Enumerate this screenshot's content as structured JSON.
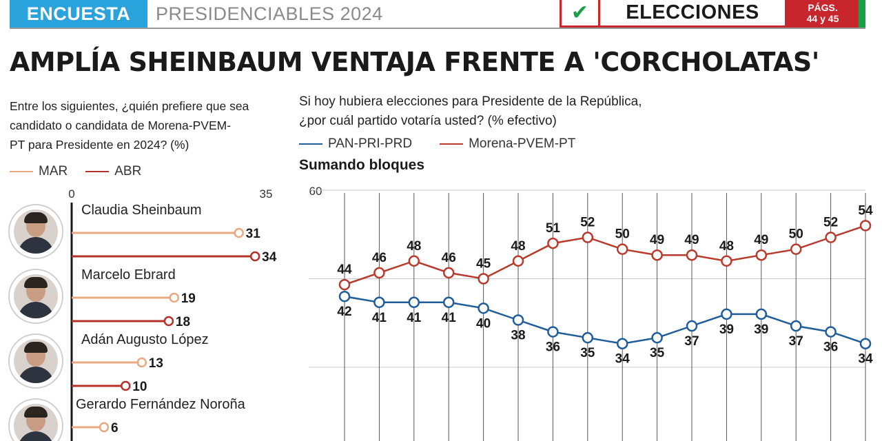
{
  "header": {
    "tag": "ENCUESTA",
    "section": "PRESIDENCIABLES 2024",
    "elections": "ELECCIONES",
    "pages_line1": "PÁGS.",
    "pages_line2": "44 y 45",
    "check_icon": "check-icon",
    "colors": {
      "tag_bg": "#2aa2dc",
      "red": "#c8262d",
      "green": "#1a9e4a"
    }
  },
  "headline": "AMPLÍA SHEINBAUM VENTAJA FRENTE A 'CORCHOLATAS'",
  "chart_data": [
    {
      "type": "bar",
      "title": "Entre los siguientes, ¿quién prefiere que sea candidato o candidata de Morena-PVEM-PT para Presidente en 2024? (%)",
      "title_lines": [
        "Entre los siguientes, ¿quién prefiere que sea",
        "candidato o candidata de Morena-PVEM-",
        "PT para Presidente en 2024?  (%)"
      ],
      "xlim": [
        0,
        35
      ],
      "tick_labels": [
        "0",
        "35"
      ],
      "categories": [
        "Claudia Sheinbaum",
        "Marcelo Ebrard",
        "Adán Augusto López",
        "Gerardo Fernández Noroña"
      ],
      "series": [
        {
          "name": "MAR",
          "color": "#e8a882",
          "values": [
            31,
            19,
            13,
            6
          ]
        },
        {
          "name": "ABR",
          "color": "#b3312a",
          "values": [
            34,
            18,
            10,
            null
          ]
        }
      ],
      "legend": "top-left"
    },
    {
      "type": "line",
      "title": "Si hoy hubiera elecciones para Presidente de la República, ¿por cuál partido votaría usted? (% efectivo)",
      "title_lines": [
        "Si hoy hubiera elecciones para Presidente de la República,",
        "¿por cuál partido votaría usted? (% efectivo)"
      ],
      "subtitle": "Sumando bloques",
      "ylim": [
        0,
        60
      ],
      "y_tick_labels": [
        "60"
      ],
      "x_count": 16,
      "series": [
        {
          "name": "PAN-PRI-PRD",
          "color": "#1f5c99",
          "values": [
            42,
            41,
            41,
            41,
            40,
            38,
            36,
            35,
            34,
            35,
            37,
            39,
            39,
            37,
            36,
            34
          ]
        },
        {
          "name": "Morena-PVEM-PT",
          "color": "#b83a2c",
          "values": [
            44,
            46,
            48,
            46,
            45,
            48,
            51,
            52,
            50,
            49,
            49,
            48,
            49,
            50,
            52,
            54
          ]
        }
      ],
      "grid": true,
      "legend": "top-left"
    }
  ]
}
